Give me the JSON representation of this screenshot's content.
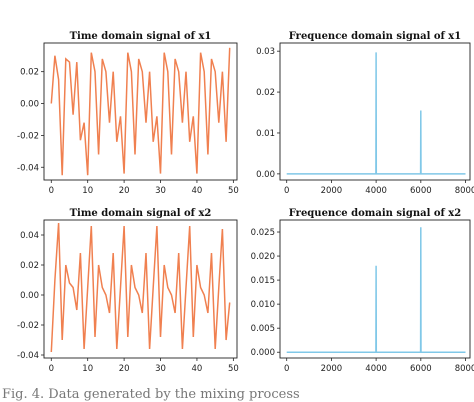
{
  "caption": "Fig. 4. Data generated by the mixing process",
  "colors": {
    "time": "#f08050",
    "freq": "#80c8e8"
  },
  "chart_data": [
    {
      "type": "line",
      "title": "Time domain signal of x1",
      "xlim": [
        -2,
        51
      ],
      "ylim": [
        -0.048,
        0.038
      ],
      "xticks": [
        0,
        10,
        20,
        30,
        40,
        50
      ],
      "yticks": [
        0.02,
        0.0,
        -0.02,
        -0.04
      ],
      "ytick_labels": [
        "0.02",
        "0.00",
        "-0.02",
        "-0.04"
      ],
      "series": [
        {
          "x": [
            0,
            1,
            2,
            3,
            4,
            5,
            6,
            7,
            8,
            9,
            10,
            11,
            12,
            13,
            14,
            15,
            16,
            17,
            18,
            19,
            20,
            21,
            22,
            23,
            24,
            25,
            26,
            27,
            28,
            29,
            30,
            31,
            32,
            33,
            34,
            35,
            36,
            37,
            38,
            39,
            40,
            41,
            42,
            43,
            44,
            45,
            46,
            47,
            48,
            49
          ],
          "values": [
            0.0,
            0.03,
            0.015,
            -0.045,
            0.028,
            0.026,
            -0.007,
            0.026,
            -0.023,
            -0.012,
            -0.045,
            0.032,
            0.02,
            -0.032,
            0.028,
            0.02,
            -0.012,
            0.02,
            -0.024,
            -0.008,
            -0.044,
            0.032,
            0.02,
            -0.032,
            0.028,
            0.02,
            -0.012,
            0.02,
            -0.024,
            -0.008,
            -0.044,
            0.032,
            0.02,
            -0.032,
            0.028,
            0.02,
            -0.012,
            0.02,
            -0.024,
            -0.008,
            -0.044,
            0.032,
            0.02,
            -0.032,
            0.028,
            0.02,
            -0.012,
            0.02,
            -0.024,
            0.035
          ]
        }
      ]
    },
    {
      "type": "line",
      "title": "Frequence domain signal of x1",
      "xlim": [
        -300,
        8200
      ],
      "ylim": [
        -0.0015,
        0.032
      ],
      "xticks": [
        0,
        2000,
        4000,
        6000,
        8000
      ],
      "yticks": [
        0.03,
        0.02,
        0.01,
        0.0
      ],
      "ytick_labels": [
        "0.03",
        "0.02",
        "0.01",
        "0.00"
      ],
      "series": [
        {
          "x": [
            0,
            3990,
            4000,
            4010,
            5990,
            6000,
            6010,
            8000
          ],
          "values": [
            0.0,
            0.0,
            0.0297,
            0.0,
            0.0,
            0.0155,
            0.0,
            0.0
          ]
        }
      ]
    },
    {
      "type": "line",
      "title": "Time domain signal of x2",
      "xlim": [
        -2,
        51
      ],
      "ylim": [
        -0.042,
        0.05
      ],
      "xticks": [
        0,
        10,
        20,
        30,
        40,
        50
      ],
      "yticks": [
        0.04,
        0.02,
        0.0,
        -0.02,
        -0.04
      ],
      "ytick_labels": [
        "0.04",
        "0.02",
        "0.00",
        "-0.02",
        "-0.04"
      ],
      "series": [
        {
          "x": [
            0,
            1,
            2,
            3,
            4,
            5,
            6,
            7,
            8,
            9,
            10,
            11,
            12,
            13,
            14,
            15,
            16,
            17,
            18,
            19,
            20,
            21,
            22,
            23,
            24,
            25,
            26,
            27,
            28,
            29,
            30,
            31,
            32,
            33,
            34,
            35,
            36,
            37,
            38,
            39,
            40,
            41,
            42,
            43,
            44,
            45,
            46,
            47,
            48,
            49
          ],
          "values": [
            -0.038,
            0.01,
            0.048,
            -0.03,
            0.02,
            0.008,
            0.005,
            -0.01,
            0.028,
            -0.036,
            0.005,
            0.046,
            -0.028,
            0.02,
            0.005,
            0.0,
            -0.012,
            0.028,
            -0.036,
            0.005,
            0.046,
            -0.028,
            0.02,
            0.005,
            0.0,
            -0.012,
            0.028,
            -0.036,
            0.005,
            0.046,
            -0.028,
            0.02,
            0.005,
            0.0,
            -0.012,
            0.028,
            -0.036,
            0.005,
            0.046,
            -0.028,
            0.02,
            0.005,
            0.0,
            -0.012,
            0.028,
            -0.036,
            0.005,
            0.044,
            -0.03,
            -0.005
          ]
        }
      ]
    },
    {
      "type": "line",
      "title": "Frequence domain signal of x2",
      "xlim": [
        -300,
        8200
      ],
      "ylim": [
        -0.0012,
        0.0275
      ],
      "xticks": [
        0,
        2000,
        4000,
        6000,
        8000
      ],
      "yticks": [
        0.025,
        0.02,
        0.015,
        0.01,
        0.005,
        0.0
      ],
      "ytick_labels": [
        "0.025",
        "0.020",
        "0.015",
        "0.010",
        "0.005",
        "0.000"
      ],
      "series": [
        {
          "x": [
            0,
            3990,
            4000,
            4010,
            5990,
            6000,
            6010,
            8000
          ],
          "values": [
            0.0,
            0.0,
            0.018,
            0.0,
            0.0,
            0.026,
            0.0,
            0.0
          ]
        }
      ]
    }
  ]
}
